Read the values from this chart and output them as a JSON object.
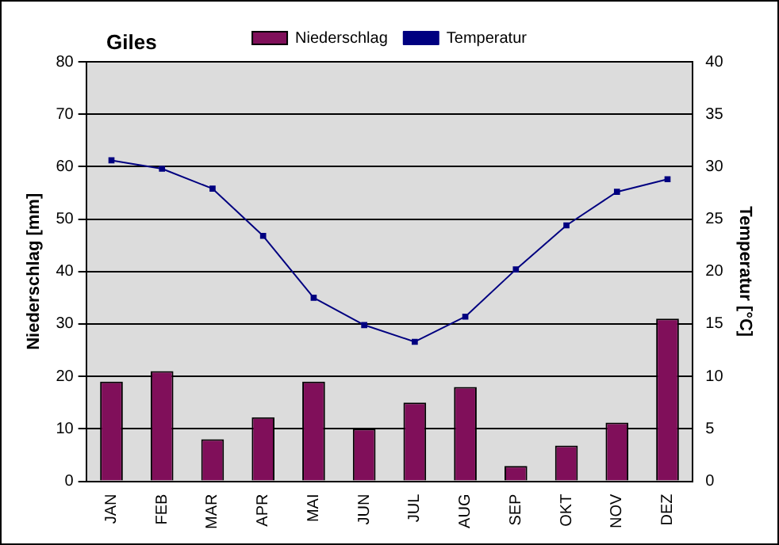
{
  "chart_data": {
    "type": "bar",
    "title": "Giles",
    "ylabel": "Niederschlag [mm]",
    "y2label": "Temperatur [°C]",
    "categories": [
      "JAN",
      "FEB",
      "MAR",
      "APR",
      "MAI",
      "JUN",
      "JUL",
      "AUG",
      "SEP",
      "OKT",
      "NOV",
      "DEZ"
    ],
    "series": [
      {
        "name": "Niederschlag",
        "color": "#800f5a",
        "values": [
          19,
          21,
          8,
          12.2,
          19,
          10,
          15,
          18,
          2.9,
          6.8,
          11.2,
          31
        ]
      },
      {
        "name": "Temperatur",
        "type": "line",
        "axis": "y2",
        "color": "#000080",
        "marker": "square",
        "values": [
          30.6,
          29.8,
          27.9,
          23.4,
          17.5,
          14.9,
          13.3,
          15.7,
          20.2,
          24.4,
          27.6,
          28.8
        ]
      }
    ],
    "ylim": [
      0,
      80
    ],
    "yticks": [
      0,
      10,
      20,
      30,
      40,
      50,
      60,
      70,
      80
    ],
    "y2lim": [
      0,
      40
    ],
    "y2ticks": [
      0,
      5,
      10,
      15,
      20,
      25,
      30,
      35,
      40
    ],
    "grid": "y",
    "legend": "top"
  }
}
